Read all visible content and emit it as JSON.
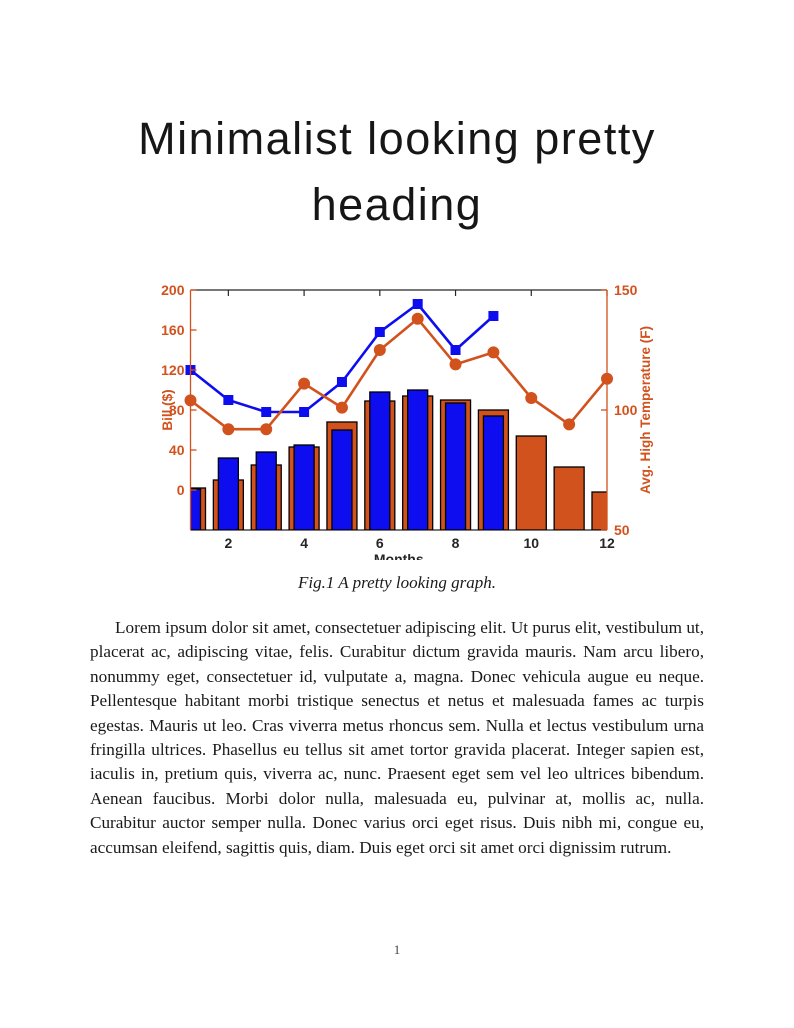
{
  "heading": {
    "line1": "Minimalist looking pretty",
    "line2": "heading"
  },
  "caption": "Fig.1 A pretty looking graph.",
  "body_text": "Lorem ipsum dolor sit amet, consectetuer adipiscing elit. Ut purus elit, vestibulum ut, placerat ac, adipiscing vitae, felis. Curabitur dictum gravida mauris. Nam arcu libero, nonummy eget, consectetuer id, vulputate a, magna. Donec vehicula augue eu neque. Pellentesque habitant morbi tristique senectus et netus et malesuada fames ac turpis egestas. Mauris ut leo. Cras viverra metus rhoncus sem. Nulla et lectus vestibulum urna fringilla ultrices. Phasellus eu tellus sit amet tortor gravida placerat. Integer sapien est, iaculis in, pretium quis, viverra ac, nunc. Praesent eget sem vel leo ultrices bibendum. Aenean faucibus. Morbi dolor nulla, malesuada eu, pulvinar at, mollis ac, nulla. Curabitur auctor semper nulla. Donec varius orci eget risus. Duis nibh mi, congue eu, accumsan eleifend, sagittis quis, diam. Duis eget orci sit amet orci dignissim rutrum.",
  "page_number": "1",
  "chart_data": {
    "type": "bar",
    "subtype": "bar-line-combo-dual-axis",
    "x": [
      1,
      2,
      3,
      4,
      5,
      6,
      7,
      8,
      9,
      10,
      11,
      12
    ],
    "xlabel": "Months",
    "x_ticks": [
      2,
      4,
      6,
      8,
      10,
      12
    ],
    "left_axis": {
      "label": "Bill ($)",
      "ticks": [
        0,
        40,
        80,
        120,
        160,
        200
      ],
      "range": [
        -40,
        200
      ],
      "color": "#d2521e"
    },
    "right_axis": {
      "label": "Avg. High Temperature (F)",
      "ticks": [
        50,
        100,
        150
      ],
      "range": [
        50,
        150
      ],
      "color": "#d2521e"
    },
    "bar_baseline": -40,
    "grid": false,
    "legend": "none",
    "series": [
      {
        "name": "orange-bars",
        "type": "bar",
        "axis": "left",
        "color": "#d2521e",
        "edge_color": "#000000",
        "values": [
          2,
          10,
          25,
          43,
          68,
          89,
          94,
          90,
          80,
          54,
          23,
          -2
        ]
      },
      {
        "name": "blue-bars",
        "type": "bar",
        "axis": "left",
        "color": "#0d0df0",
        "edge_color": "#000000",
        "values": [
          1,
          32,
          38,
          45,
          60,
          98,
          100,
          87,
          74,
          null,
          null,
          null
        ]
      },
      {
        "name": "blue-line",
        "type": "line",
        "marker": "square",
        "axis": "left",
        "color": "#0d0df0",
        "values": [
          120,
          90,
          78,
          78,
          108,
          158,
          186,
          140,
          174,
          null,
          null,
          null
        ]
      },
      {
        "name": "orange-line",
        "type": "line",
        "marker": "circle",
        "axis": "right",
        "color": "#d2521e",
        "values": [
          104,
          92,
          92,
          111,
          101,
          125,
          138,
          119,
          124,
          105,
          94,
          113
        ]
      }
    ],
    "spine_dark_color": "#262626"
  }
}
